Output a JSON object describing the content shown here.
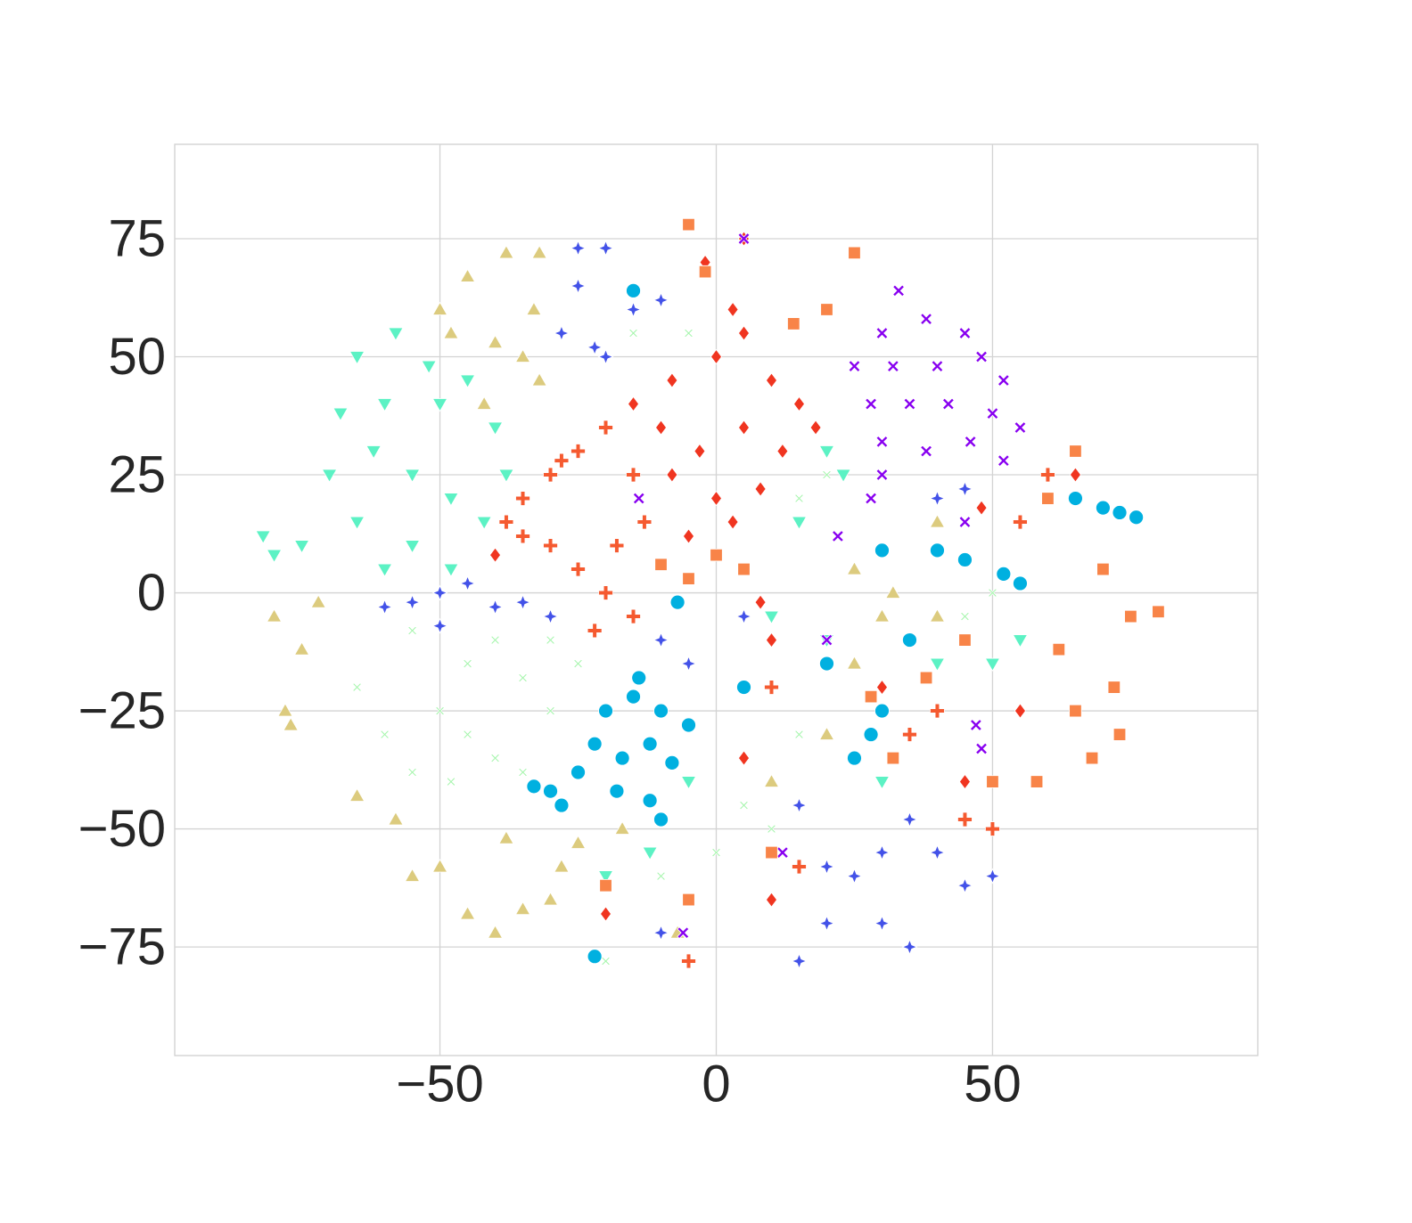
{
  "chart_data": {
    "type": "scatter",
    "xlim": [
      -98,
      98
    ],
    "ylim": [
      -98,
      95
    ],
    "xticks": [
      {
        "value": -50,
        "label": "−50"
      },
      0,
      50
    ],
    "yticks": [
      {
        "value": -75,
        "label": "−75"
      },
      {
        "value": -50,
        "label": "−50"
      },
      {
        "value": -25,
        "label": "−25"
      },
      0,
      25,
      50,
      75
    ],
    "grid": true,
    "series": [
      {
        "color": "#5cf2c4",
        "marker": "triangle-down",
        "x": [
          -65,
          -58,
          -52,
          -60,
          -50,
          -45,
          -40,
          -38,
          -42,
          -48,
          -55,
          -62,
          -68,
          -70,
          -65,
          -55,
          -48,
          -60,
          -75,
          -80,
          -82,
          15,
          20,
          23,
          10,
          20,
          50,
          55,
          -5,
          -12,
          -20,
          40,
          30
        ],
        "y": [
          50,
          55,
          48,
          40,
          40,
          45,
          35,
          25,
          15,
          20,
          25,
          30,
          38,
          25,
          15,
          10,
          5,
          5,
          10,
          8,
          12,
          15,
          30,
          25,
          -5,
          -10,
          -15,
          -10,
          -40,
          -55,
          -60,
          -15,
          -40
        ]
      },
      {
        "color": "#dccb7e",
        "marker": "triangle-up",
        "x": [
          -50,
          -45,
          -38,
          -32,
          -48,
          -40,
          -35,
          -33,
          -32,
          -42,
          -80,
          -75,
          -72,
          -78,
          -77,
          -65,
          -58,
          -50,
          -45,
          -40,
          -35,
          -30,
          -28,
          -38,
          -55,
          -25,
          -17,
          25,
          30,
          32,
          25,
          40,
          20,
          40,
          10,
          -7
        ],
        "y": [
          60,
          67,
          72,
          72,
          55,
          53,
          50,
          60,
          45,
          40,
          -5,
          -12,
          -2,
          -25,
          -28,
          -43,
          -48,
          -58,
          -68,
          -72,
          -67,
          -65,
          -58,
          -52,
          -60,
          -53,
          -50,
          -15,
          -5,
          0,
          5,
          -5,
          -30,
          15,
          -40,
          -72
        ]
      },
      {
        "color": "#4352e8",
        "marker": "star",
        "x": [
          -25,
          -20,
          -25,
          -28,
          -22,
          -15,
          -10,
          -20,
          -60,
          -55,
          -50,
          -45,
          -40,
          -35,
          -30,
          -50,
          15,
          20,
          25,
          30,
          35,
          40,
          45,
          50,
          30,
          35,
          20,
          15,
          -10,
          -5,
          5,
          40,
          45,
          -10
        ],
        "y": [
          73,
          73,
          65,
          55,
          52,
          60,
          62,
          50,
          -3,
          -2,
          0,
          2,
          -3,
          -2,
          -5,
          -7,
          -78,
          -70,
          -60,
          -55,
          -48,
          -55,
          -62,
          -60,
          -70,
          -75,
          -58,
          -45,
          -10,
          -15,
          -5,
          20,
          22,
          -72
        ]
      },
      {
        "color": "#a3f5aa",
        "marker": "x",
        "x": [
          -65,
          -60,
          -55,
          -50,
          -45,
          -40,
          -35,
          -30,
          -40,
          -48,
          -55,
          -30,
          -25,
          -35,
          -45,
          15,
          10,
          5,
          0,
          -10,
          -20,
          -15,
          -5,
          20,
          15,
          45,
          50
        ],
        "y": [
          -20,
          -30,
          -38,
          -25,
          -15,
          -10,
          -18,
          -25,
          -35,
          -40,
          -8,
          -10,
          -15,
          -38,
          -30,
          -30,
          -50,
          -45,
          -55,
          -60,
          -78,
          55,
          55,
          25,
          20,
          -5,
          0
        ]
      },
      {
        "color": "#00b0e0",
        "marker": "circle",
        "x": [
          -20,
          -15,
          -10,
          -5,
          -22,
          -17,
          -12,
          -8,
          -25,
          -18,
          -12,
          -30,
          -33,
          -28,
          -10,
          -14,
          65,
          70,
          73,
          76,
          40,
          45,
          52,
          55,
          30,
          35,
          28,
          25,
          30,
          -7,
          5,
          -15,
          -22,
          20
        ],
        "y": [
          -25,
          -22,
          -25,
          -28,
          -32,
          -35,
          -32,
          -36,
          -38,
          -42,
          -44,
          -42,
          -41,
          -45,
          -48,
          -18,
          20,
          18,
          17,
          16,
          9,
          7,
          4,
          2,
          9,
          -10,
          -30,
          -35,
          -25,
          -2,
          -20,
          64,
          -77,
          -15
        ]
      },
      {
        "color": "#f03520",
        "marker": "diamond",
        "x": [
          -15,
          -8,
          0,
          5,
          10,
          15,
          -10,
          -3,
          5,
          12,
          18,
          -8,
          0,
          8,
          -5,
          3,
          3,
          -2,
          5,
          -40,
          48,
          30,
          45,
          10,
          5,
          -20,
          10,
          55,
          65,
          8
        ],
        "y": [
          40,
          45,
          50,
          55,
          45,
          40,
          35,
          30,
          35,
          30,
          35,
          25,
          20,
          22,
          12,
          15,
          60,
          70,
          75,
          8,
          18,
          -20,
          -40,
          -10,
          -35,
          -68,
          -65,
          -25,
          25,
          -2
        ]
      },
      {
        "color": "#f55a30",
        "marker": "plus",
        "x": [
          -35,
          -30,
          -25,
          -20,
          -15,
          -30,
          -25,
          -20,
          -15,
          -18,
          -35,
          -38,
          -22,
          -13,
          -28,
          60,
          55,
          50,
          45,
          -5,
          15,
          40,
          35,
          10
        ],
        "y": [
          20,
          25,
          30,
          35,
          25,
          10,
          5,
          0,
          -5,
          10,
          12,
          15,
          -8,
          15,
          28,
          25,
          15,
          -50,
          -48,
          -78,
          -58,
          -25,
          -30,
          -20
        ]
      },
      {
        "color": "#8800f0",
        "marker": "X",
        "x": [
          30,
          38,
          45,
          25,
          32,
          40,
          48,
          52,
          28,
          35,
          42,
          50,
          55,
          30,
          38,
          46,
          52,
          30,
          28,
          33,
          45,
          47,
          48,
          20,
          12,
          -6,
          22,
          5,
          -14
        ],
        "y": [
          55,
          58,
          55,
          48,
          48,
          48,
          50,
          45,
          40,
          40,
          40,
          38,
          35,
          32,
          30,
          32,
          28,
          25,
          20,
          64,
          15,
          -28,
          -33,
          -10,
          -55,
          -72,
          12,
          75,
          20
        ]
      },
      {
        "color": "#f88448",
        "marker": "square",
        "x": [
          25,
          20,
          14,
          -2,
          -5,
          65,
          60,
          70,
          75,
          80,
          72,
          65,
          68,
          73,
          50,
          58,
          62,
          0,
          5,
          -5,
          -10,
          28,
          32,
          -20,
          -5,
          10,
          45,
          38
        ],
        "y": [
          72,
          60,
          57,
          68,
          78,
          30,
          20,
          5,
          -5,
          -4,
          -20,
          -25,
          -35,
          -30,
          -40,
          -40,
          -12,
          8,
          5,
          3,
          6,
          -22,
          -35,
          -62,
          -65,
          -55,
          -10,
          -18
        ]
      }
    ]
  }
}
